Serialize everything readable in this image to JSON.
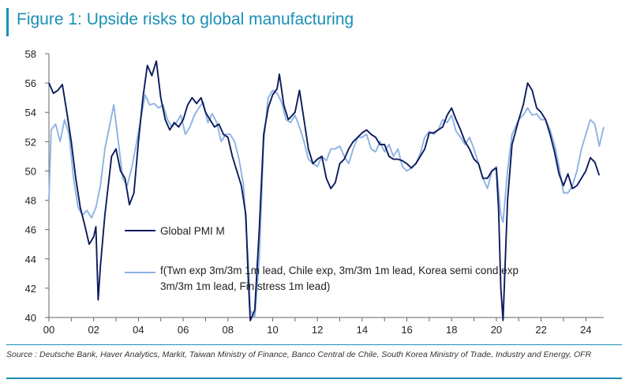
{
  "figure": {
    "title": "Figure 1: Upside risks to global manufacturing",
    "source": "Source : Deutsche Bank, Haver Analytics, Markit, Taiwan Ministry of Finance, Banco Central de Chile, South Korea Ministry of Trade, Industry and Energy, OFR"
  },
  "colors": {
    "accent": "#1a8fb5",
    "series_dark": "#0d1b5e",
    "series_light": "#8db3e2"
  },
  "chart_data": {
    "type": "line",
    "title": "Figure 1: Upside risks to global manufacturing",
    "xlabel": "",
    "ylabel": "",
    "xlim": [
      2000,
      2024.8
    ],
    "ylim": [
      40,
      58
    ],
    "x_ticks": [
      "00",
      "02",
      "04",
      "06",
      "08",
      "10",
      "12",
      "14",
      "16",
      "18",
      "20",
      "22",
      "24"
    ],
    "y_ticks": [
      "40",
      "42",
      "44",
      "46",
      "48",
      "50",
      "52",
      "54",
      "56",
      "58"
    ],
    "grid": false,
    "legend_placement": "center-left",
    "series": [
      {
        "name": "Global PMI M",
        "color": "#0d1b5e",
        "points": [
          [
            2000.0,
            56.0
          ],
          [
            2000.2,
            55.3
          ],
          [
            2000.4,
            55.5
          ],
          [
            2000.6,
            55.9
          ],
          [
            2000.8,
            54.0
          ],
          [
            2001.0,
            52.0
          ],
          [
            2001.2,
            49.5
          ],
          [
            2001.4,
            47.5
          ],
          [
            2001.6,
            46.3
          ],
          [
            2001.8,
            45.0
          ],
          [
            2002.0,
            45.5
          ],
          [
            2002.1,
            46.2
          ],
          [
            2002.2,
            41.2
          ],
          [
            2002.3,
            43.5
          ],
          [
            2002.5,
            47.0
          ],
          [
            2002.8,
            51.0
          ],
          [
            2003.0,
            51.5
          ],
          [
            2003.2,
            50.0
          ],
          [
            2003.4,
            49.5
          ],
          [
            2003.6,
            47.7
          ],
          [
            2003.8,
            48.5
          ],
          [
            2004.0,
            52.0
          ],
          [
            2004.2,
            55.0
          ],
          [
            2004.4,
            57.2
          ],
          [
            2004.6,
            56.5
          ],
          [
            2004.8,
            57.5
          ],
          [
            2005.0,
            55.0
          ],
          [
            2005.2,
            53.5
          ],
          [
            2005.4,
            52.8
          ],
          [
            2005.6,
            53.3
          ],
          [
            2005.8,
            53.0
          ],
          [
            2006.0,
            53.5
          ],
          [
            2006.2,
            54.5
          ],
          [
            2006.4,
            55.0
          ],
          [
            2006.6,
            54.6
          ],
          [
            2006.8,
            55.0
          ],
          [
            2007.0,
            54.0
          ],
          [
            2007.2,
            53.5
          ],
          [
            2007.4,
            53.0
          ],
          [
            2007.6,
            53.2
          ],
          [
            2007.8,
            52.5
          ],
          [
            2008.0,
            52.3
          ],
          [
            2008.2,
            51.0
          ],
          [
            2008.4,
            50.0
          ],
          [
            2008.6,
            49.0
          ],
          [
            2008.8,
            47.0
          ],
          [
            2008.9,
            43.0
          ],
          [
            2009.0,
            39.8
          ],
          [
            2009.2,
            40.5
          ],
          [
            2009.4,
            46.0
          ],
          [
            2009.6,
            52.5
          ],
          [
            2009.8,
            54.3
          ],
          [
            2010.0,
            55.2
          ],
          [
            2010.2,
            55.6
          ],
          [
            2010.3,
            56.6
          ],
          [
            2010.5,
            54.5
          ],
          [
            2010.7,
            53.5
          ],
          [
            2011.0,
            54.0
          ],
          [
            2011.2,
            55.5
          ],
          [
            2011.4,
            53.5
          ],
          [
            2011.6,
            51.5
          ],
          [
            2011.8,
            50.5
          ],
          [
            2012.0,
            50.8
          ],
          [
            2012.2,
            51.0
          ],
          [
            2012.4,
            49.5
          ],
          [
            2012.6,
            48.8
          ],
          [
            2012.8,
            49.2
          ],
          [
            2013.0,
            50.5
          ],
          [
            2013.2,
            50.8
          ],
          [
            2013.4,
            51.5
          ],
          [
            2013.6,
            52.0
          ],
          [
            2013.8,
            52.3
          ],
          [
            2014.0,
            52.6
          ],
          [
            2014.2,
            52.8
          ],
          [
            2014.4,
            52.5
          ],
          [
            2014.6,
            52.3
          ],
          [
            2014.8,
            51.8
          ],
          [
            2015.0,
            51.8
          ],
          [
            2015.2,
            51.0
          ],
          [
            2015.4,
            50.8
          ],
          [
            2015.6,
            50.8
          ],
          [
            2015.8,
            50.7
          ],
          [
            2016.0,
            50.5
          ],
          [
            2016.2,
            50.2
          ],
          [
            2016.4,
            50.5
          ],
          [
            2016.6,
            51.0
          ],
          [
            2016.8,
            51.5
          ],
          [
            2017.0,
            52.6
          ],
          [
            2017.2,
            52.6
          ],
          [
            2017.4,
            52.8
          ],
          [
            2017.6,
            53.0
          ],
          [
            2017.8,
            53.8
          ],
          [
            2018.0,
            54.3
          ],
          [
            2018.2,
            53.5
          ],
          [
            2018.4,
            52.8
          ],
          [
            2018.6,
            52.0
          ],
          [
            2018.8,
            51.5
          ],
          [
            2019.0,
            50.8
          ],
          [
            2019.2,
            50.5
          ],
          [
            2019.4,
            49.5
          ],
          [
            2019.6,
            49.5
          ],
          [
            2019.8,
            50.0
          ],
          [
            2020.0,
            50.2
          ],
          [
            2020.1,
            47.3
          ],
          [
            2020.2,
            42.0
          ],
          [
            2020.3,
            39.8
          ],
          [
            2020.5,
            48.0
          ],
          [
            2020.7,
            51.8
          ],
          [
            2021.0,
            53.5
          ],
          [
            2021.2,
            54.5
          ],
          [
            2021.4,
            56.0
          ],
          [
            2021.6,
            55.5
          ],
          [
            2021.8,
            54.3
          ],
          [
            2022.0,
            54.0
          ],
          [
            2022.2,
            53.5
          ],
          [
            2022.4,
            52.5
          ],
          [
            2022.6,
            51.3
          ],
          [
            2022.8,
            49.8
          ],
          [
            2023.0,
            49.0
          ],
          [
            2023.2,
            49.8
          ],
          [
            2023.4,
            48.8
          ],
          [
            2023.6,
            49.0
          ],
          [
            2023.8,
            49.5
          ],
          [
            2024.0,
            50.0
          ],
          [
            2024.2,
            50.9
          ],
          [
            2024.4,
            50.6
          ],
          [
            2024.6,
            49.7
          ]
        ]
      },
      {
        "name": "f(Twn exp 3m/3m 1m lead, Chile exp, 3m/3m 1m lead, Korea semi cond exp 3m/3m 1m lead, Fin stress 1m lead)",
        "color": "#8db3e2",
        "points": [
          [
            2000.0,
            48.0
          ],
          [
            2000.1,
            52.8
          ],
          [
            2000.3,
            53.2
          ],
          [
            2000.5,
            52.0
          ],
          [
            2000.7,
            53.5
          ],
          [
            2000.9,
            52.5
          ],
          [
            2001.1,
            49.5
          ],
          [
            2001.3,
            47.5
          ],
          [
            2001.5,
            47.0
          ],
          [
            2001.7,
            47.3
          ],
          [
            2001.9,
            46.8
          ],
          [
            2002.1,
            47.5
          ],
          [
            2002.3,
            49.0
          ],
          [
            2002.5,
            51.5
          ],
          [
            2002.7,
            53.0
          ],
          [
            2002.9,
            54.5
          ],
          [
            2003.1,
            52.0
          ],
          [
            2003.3,
            49.5
          ],
          [
            2003.5,
            49.0
          ],
          [
            2003.7,
            50.2
          ],
          [
            2003.9,
            51.8
          ],
          [
            2004.1,
            53.5
          ],
          [
            2004.3,
            55.2
          ],
          [
            2004.5,
            54.5
          ],
          [
            2004.7,
            54.6
          ],
          [
            2004.9,
            54.3
          ],
          [
            2005.1,
            54.5
          ],
          [
            2005.3,
            53.5
          ],
          [
            2005.5,
            53.0
          ],
          [
            2005.7,
            53.3
          ],
          [
            2005.9,
            53.8
          ],
          [
            2006.1,
            52.5
          ],
          [
            2006.3,
            53.0
          ],
          [
            2006.5,
            53.8
          ],
          [
            2006.7,
            54.3
          ],
          [
            2006.9,
            54.7
          ],
          [
            2007.1,
            53.3
          ],
          [
            2007.3,
            53.9
          ],
          [
            2007.5,
            53.3
          ],
          [
            2007.7,
            52.0
          ],
          [
            2007.9,
            52.5
          ],
          [
            2008.1,
            52.5
          ],
          [
            2008.3,
            52.0
          ],
          [
            2008.5,
            50.8
          ],
          [
            2008.7,
            49.0
          ],
          [
            2008.9,
            44.0
          ],
          [
            2009.0,
            40.5
          ],
          [
            2009.2,
            40.0
          ],
          [
            2009.4,
            44.0
          ],
          [
            2009.6,
            52.0
          ],
          [
            2009.8,
            55.0
          ],
          [
            2010.0,
            55.5
          ],
          [
            2010.2,
            55.3
          ],
          [
            2010.4,
            54.7
          ],
          [
            2010.6,
            53.5
          ],
          [
            2010.8,
            53.3
          ],
          [
            2011.0,
            53.8
          ],
          [
            2011.2,
            53.0
          ],
          [
            2011.4,
            52.0
          ],
          [
            2011.6,
            50.8
          ],
          [
            2011.8,
            50.5
          ],
          [
            2012.0,
            50.3
          ],
          [
            2012.2,
            51.0
          ],
          [
            2012.4,
            50.7
          ],
          [
            2012.6,
            51.5
          ],
          [
            2012.8,
            51.5
          ],
          [
            2013.0,
            51.7
          ],
          [
            2013.2,
            51.0
          ],
          [
            2013.4,
            50.5
          ],
          [
            2013.6,
            51.5
          ],
          [
            2013.8,
            52.3
          ],
          [
            2014.0,
            52.3
          ],
          [
            2014.2,
            52.5
          ],
          [
            2014.4,
            51.5
          ],
          [
            2014.6,
            51.3
          ],
          [
            2014.8,
            52.0
          ],
          [
            2015.0,
            51.3
          ],
          [
            2015.2,
            51.8
          ],
          [
            2015.4,
            51.0
          ],
          [
            2015.6,
            51.5
          ],
          [
            2015.8,
            50.3
          ],
          [
            2016.0,
            50.0
          ],
          [
            2016.2,
            50.2
          ],
          [
            2016.4,
            50.5
          ],
          [
            2016.6,
            51.2
          ],
          [
            2016.8,
            52.3
          ],
          [
            2017.0,
            52.7
          ],
          [
            2017.2,
            52.5
          ],
          [
            2017.4,
            52.8
          ],
          [
            2017.6,
            53.5
          ],
          [
            2017.8,
            53.3
          ],
          [
            2018.0,
            53.8
          ],
          [
            2018.2,
            52.7
          ],
          [
            2018.4,
            52.3
          ],
          [
            2018.6,
            51.8
          ],
          [
            2018.8,
            52.3
          ],
          [
            2019.0,
            51.5
          ],
          [
            2019.2,
            50.5
          ],
          [
            2019.4,
            49.5
          ],
          [
            2019.6,
            48.8
          ],
          [
            2019.8,
            50.0
          ],
          [
            2020.0,
            50.3
          ],
          [
            2020.2,
            47.0
          ],
          [
            2020.3,
            46.5
          ],
          [
            2020.5,
            50.0
          ],
          [
            2020.7,
            52.5
          ],
          [
            2021.0,
            53.5
          ],
          [
            2021.2,
            53.8
          ],
          [
            2021.4,
            54.3
          ],
          [
            2021.6,
            53.8
          ],
          [
            2021.8,
            53.9
          ],
          [
            2022.0,
            53.5
          ],
          [
            2022.2,
            53.5
          ],
          [
            2022.4,
            52.8
          ],
          [
            2022.6,
            51.8
          ],
          [
            2022.8,
            50.3
          ],
          [
            2023.0,
            48.5
          ],
          [
            2023.2,
            48.5
          ],
          [
            2023.4,
            49.0
          ],
          [
            2023.6,
            50.0
          ],
          [
            2023.8,
            51.5
          ],
          [
            2024.0,
            52.5
          ],
          [
            2024.2,
            53.5
          ],
          [
            2024.4,
            53.2
          ],
          [
            2024.6,
            51.7
          ],
          [
            2024.8,
            53.0
          ]
        ]
      }
    ]
  }
}
